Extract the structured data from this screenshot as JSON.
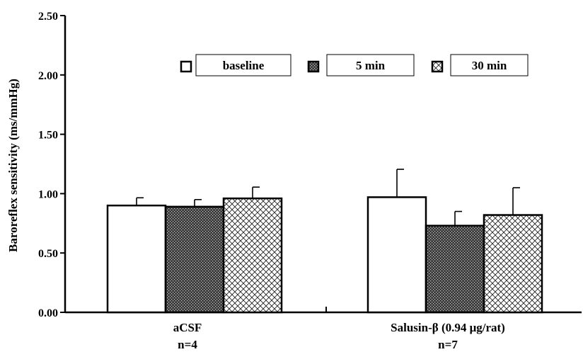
{
  "chart_data": {
    "type": "bar",
    "title": "",
    "xlabel": "",
    "ylabel": "Baroreflex sensitivity (ms/mmHg)",
    "ylim": [
      0,
      2.5
    ],
    "yticks": [
      "0.00",
      "0.50",
      "1.00",
      "1.50",
      "2.00",
      "2.50"
    ],
    "categories": [
      "aCSF",
      "Salusin-β (0.94 μg/rat)"
    ],
    "category_sublabels": [
      "n=4",
      "n=7"
    ],
    "series": [
      {
        "name": "baseline",
        "values": [
          0.9,
          0.97
        ],
        "errors": [
          0.065,
          0.235
        ],
        "pattern": "white"
      },
      {
        "name": "5 min",
        "values": [
          0.89,
          0.73
        ],
        "errors": [
          0.06,
          0.12
        ],
        "pattern": "dense-dots"
      },
      {
        "name": "30 min",
        "values": [
          0.96,
          0.82
        ],
        "errors": [
          0.095,
          0.23
        ],
        "pattern": "crosshatch"
      }
    ],
    "grid": false,
    "legend_position": "top-center"
  }
}
